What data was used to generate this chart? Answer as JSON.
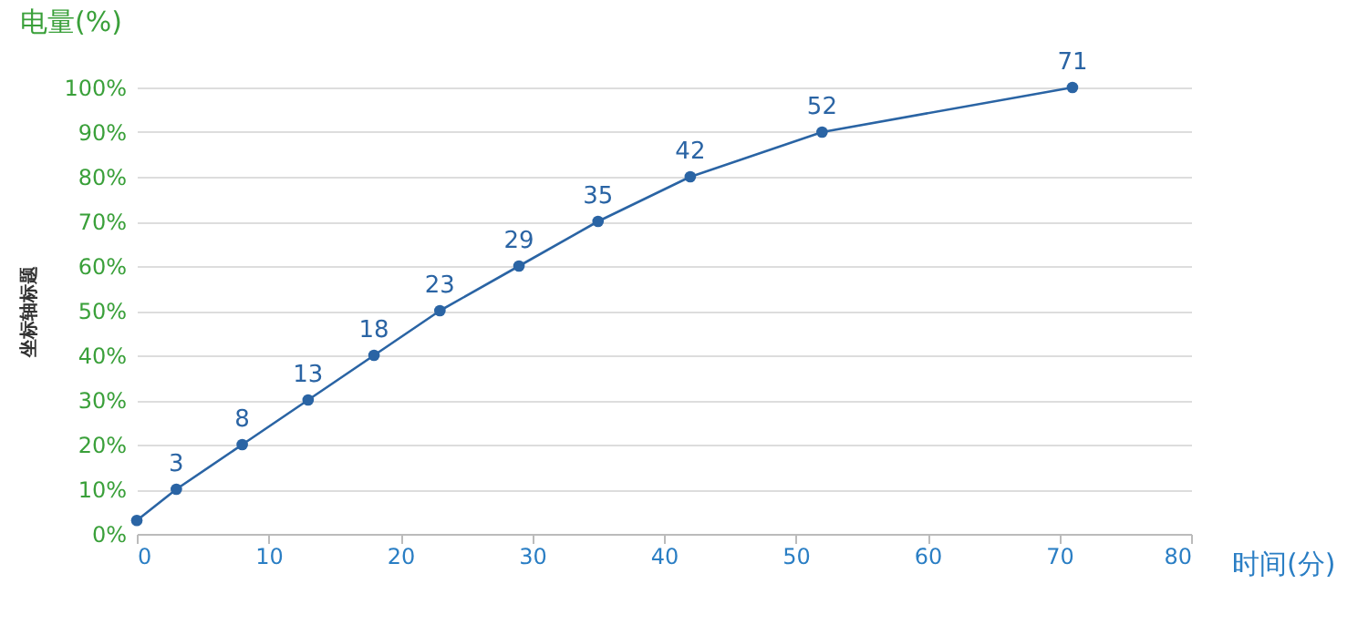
{
  "chart_data": {
    "type": "line",
    "title": "电量(%)",
    "xlabel": "时间(分)",
    "ylabel": "坐标轴标题",
    "x": [
      0,
      3,
      8,
      13,
      18,
      23,
      29,
      35,
      42,
      52,
      71
    ],
    "series": [
      {
        "color": "#2a64a4",
        "values": [
          3,
          10,
          20,
          30,
          40,
          50,
          60,
          70,
          80,
          90,
          100
        ]
      }
    ],
    "annotations": [
      {
        "text": "3",
        "x": 3,
        "y": 10
      },
      {
        "text": "8",
        "x": 8,
        "y": 20
      },
      {
        "text": "13",
        "x": 13,
        "y": 30
      },
      {
        "text": "18",
        "x": 18,
        "y": 40
      },
      {
        "text": "23",
        "x": 23,
        "y": 50
      },
      {
        "text": "29",
        "x": 29,
        "y": 60
      },
      {
        "text": "35",
        "x": 35,
        "y": 70
      },
      {
        "text": "42",
        "x": 42,
        "y": 80
      },
      {
        "text": "52",
        "x": 52,
        "y": 90
      },
      {
        "text": "71",
        "x": 71,
        "y": 100
      }
    ],
    "xlim": [
      0,
      80
    ],
    "xticks": [
      0,
      10,
      20,
      30,
      40,
      50,
      60,
      70,
      80
    ],
    "ylim": [
      0,
      100
    ],
    "yticks": [
      {
        "value": 0,
        "label": "0%"
      },
      {
        "value": 10,
        "label": "10%"
      },
      {
        "value": 20,
        "label": "20%"
      },
      {
        "value": 30,
        "label": "30%"
      },
      {
        "value": 40,
        "label": "40%"
      },
      {
        "value": 50,
        "label": "50%"
      },
      {
        "value": 60,
        "label": "60%"
      },
      {
        "value": 70,
        "label": "70%"
      },
      {
        "value": 80,
        "label": "80%"
      },
      {
        "value": 90,
        "label": "90%"
      },
      {
        "value": 100,
        "label": "100%"
      }
    ],
    "grid": "y",
    "marker": "circle",
    "line_style": "solid"
  }
}
